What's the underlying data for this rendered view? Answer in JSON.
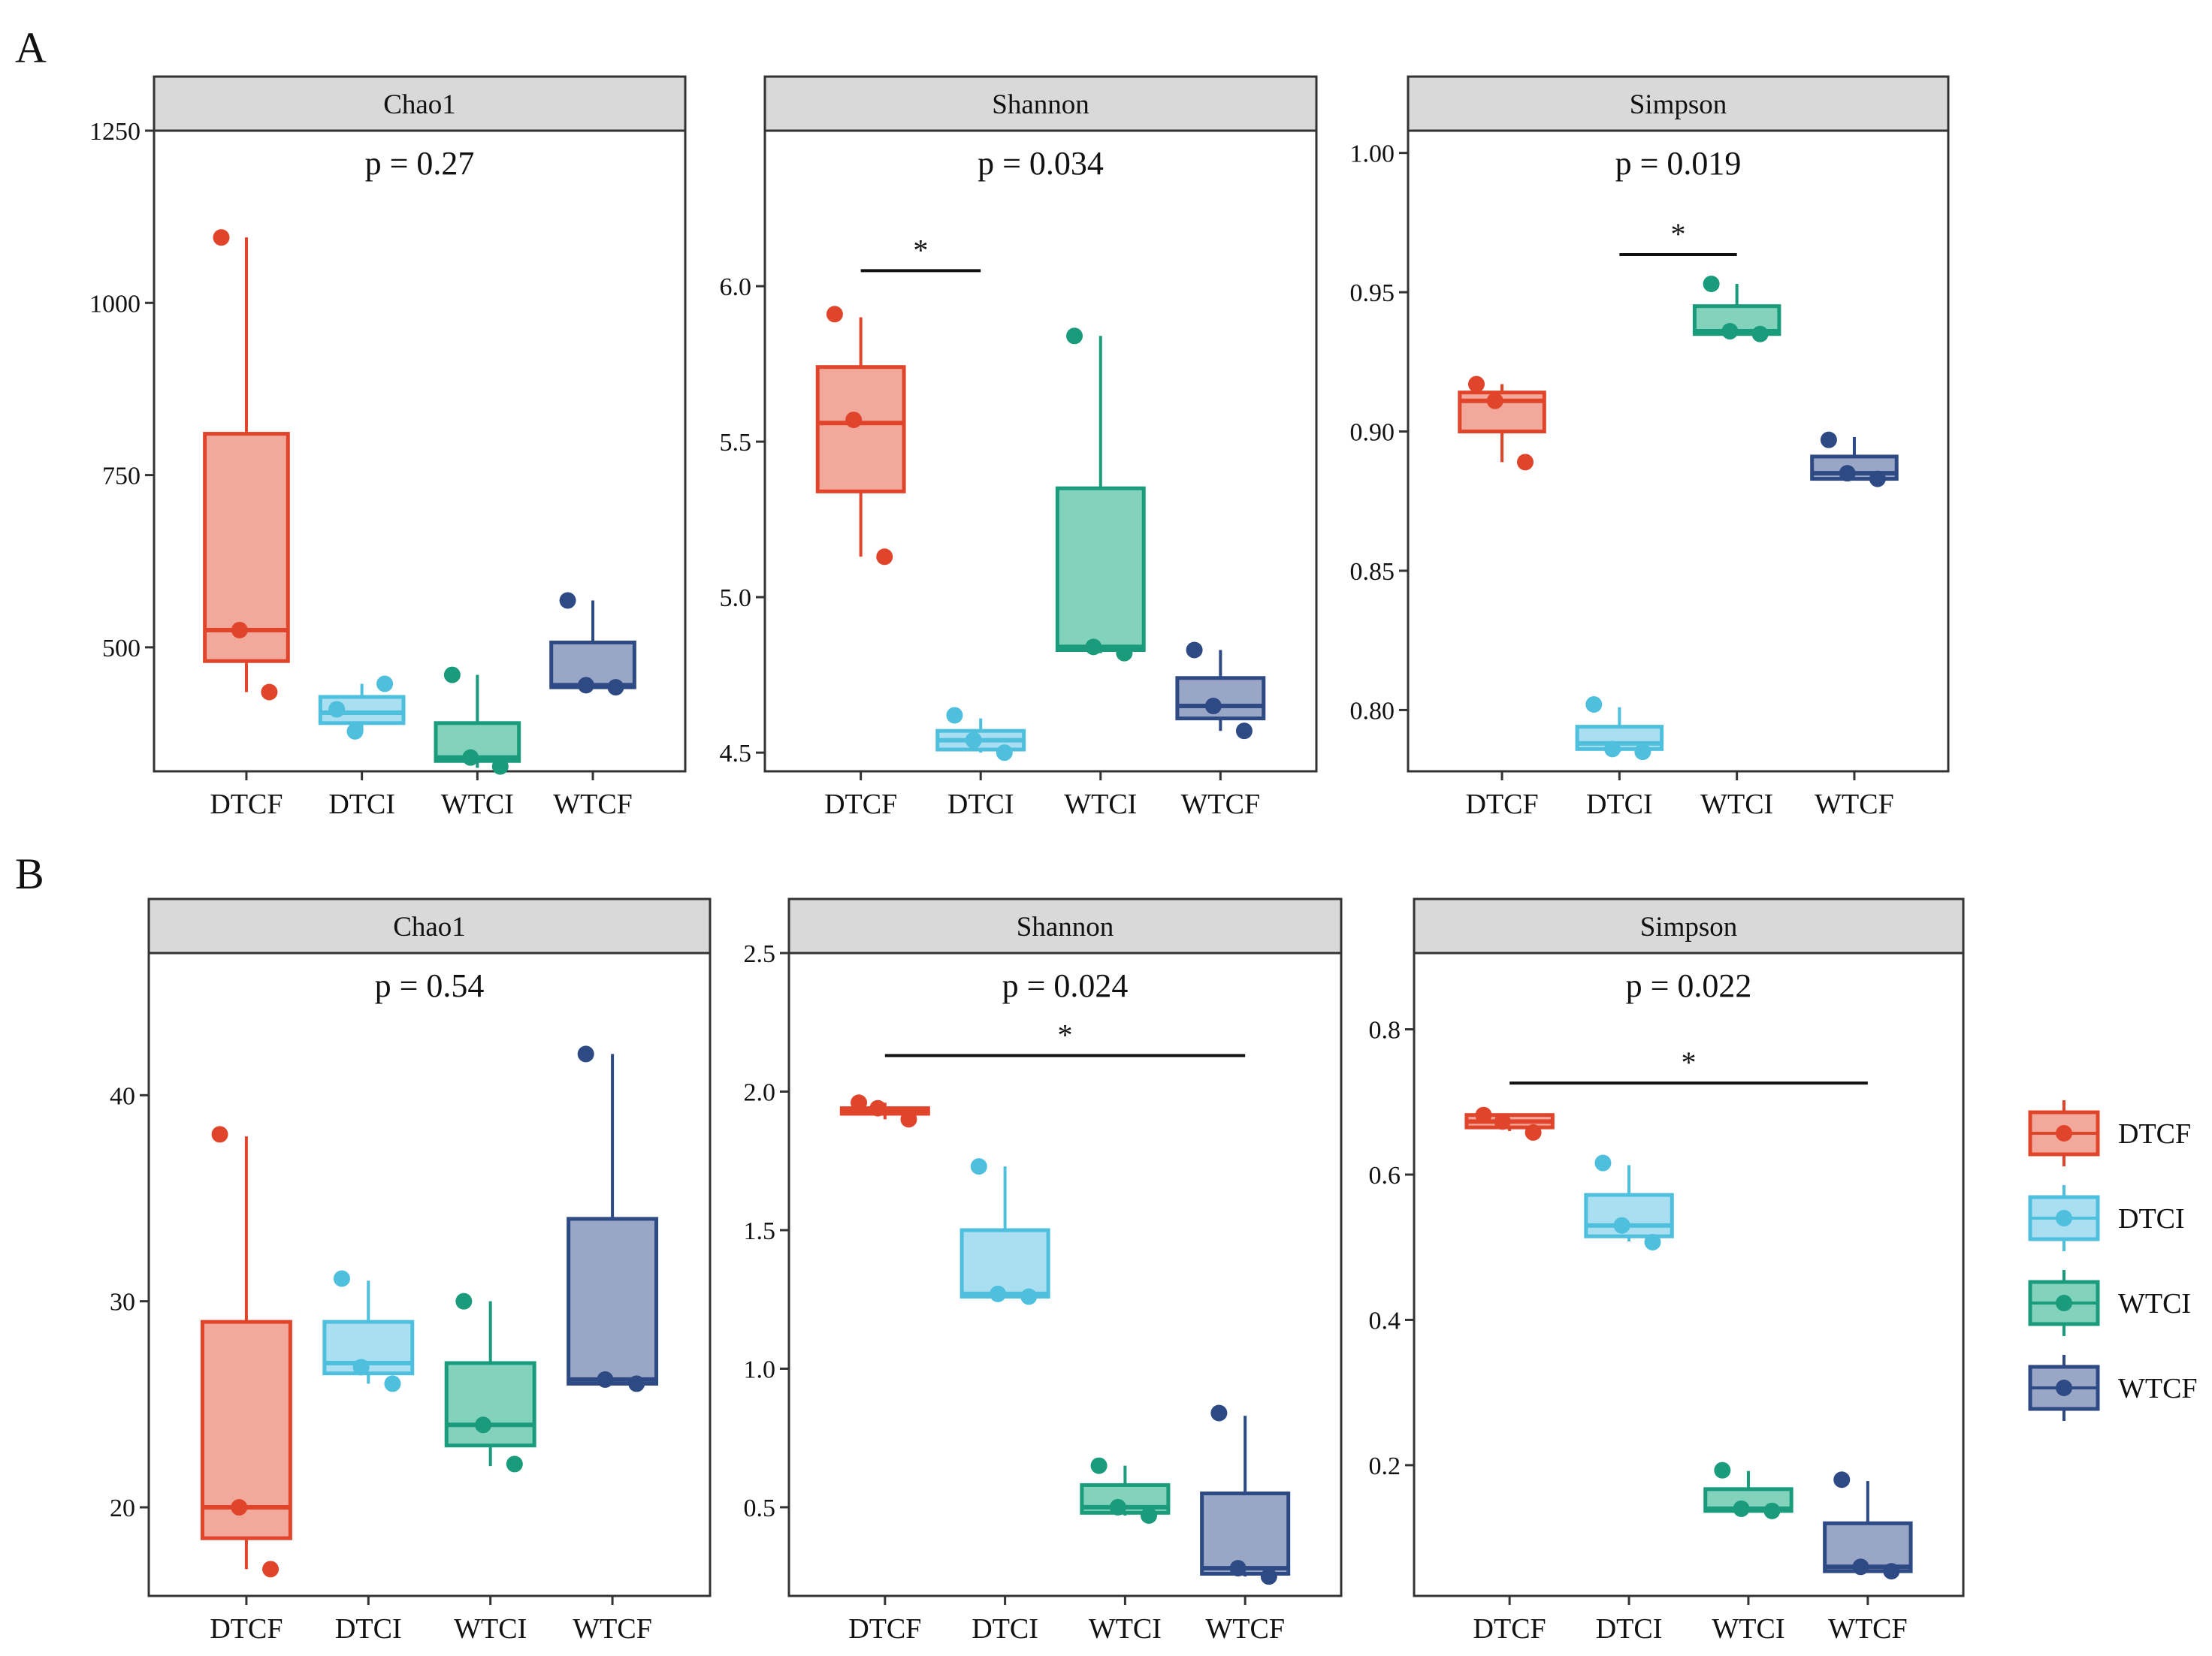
{
  "colors": {
    "DTCF": {
      "line": "#e0452b",
      "fill": "#f2a99c",
      "point": "#e0452b"
    },
    "DTCI": {
      "line": "#4fbfde",
      "fill": "#a9dff0",
      "point": "#4fbfde"
    },
    "WTCI": {
      "line": "#1a9b7b",
      "fill": "#82d2bc",
      "point": "#1a9b7b"
    },
    "WTCF": {
      "line": "#2e4a84",
      "fill": "#9aa6c6",
      "point": "#2e4a84"
    },
    "strip": "#d9d9d9"
  },
  "legend": {
    "entries": [
      "DTCF",
      "DTCI",
      "WTCI",
      "WTCF"
    ]
  },
  "rows": [
    {
      "label": "A"
    },
    {
      "label": "B"
    }
  ],
  "chart_data": [
    {
      "type": "box",
      "row": "A",
      "title": "Chao1",
      "p_label": "p = 0.27",
      "categories": [
        "DTCF",
        "DTCI",
        "WTCI",
        "WTCF"
      ],
      "ylim": [
        320,
        1250
      ],
      "yticks": [
        500,
        750,
        1000,
        1250
      ],
      "boxes": [
        {
          "group": "DTCF",
          "q1": 480,
          "median": 525,
          "q3": 810,
          "lo": 435,
          "hi": 1095
        },
        {
          "group": "DTCI",
          "q1": 390,
          "median": 405,
          "q3": 428,
          "lo": 378,
          "hi": 447
        },
        {
          "group": "WTCI",
          "q1": 335,
          "median": 340,
          "q3": 390,
          "lo": 325,
          "hi": 460
        },
        {
          "group": "WTCF",
          "q1": 442,
          "median": 445,
          "q3": 507,
          "lo": 440,
          "hi": 568
        }
      ],
      "points": [
        {
          "group": "DTCF",
          "values": [
            1095,
            525,
            435
          ]
        },
        {
          "group": "DTCI",
          "values": [
            410,
            378,
            447
          ]
        },
        {
          "group": "WTCI",
          "values": [
            460,
            340,
            327
          ]
        },
        {
          "group": "WTCF",
          "values": [
            568,
            445,
            442
          ]
        }
      ],
      "sig": []
    },
    {
      "type": "box",
      "row": "A",
      "title": "Shannon",
      "p_label": "p = 0.034",
      "categories": [
        "DTCF",
        "DTCI",
        "WTCI",
        "WTCF"
      ],
      "ylim": [
        4.44,
        6.5
      ],
      "yticks": [
        4.5,
        5.0,
        5.5,
        6.0
      ],
      "boxes": [
        {
          "group": "DTCF",
          "q1": 5.34,
          "median": 5.56,
          "q3": 5.74,
          "lo": 5.13,
          "hi": 5.9
        },
        {
          "group": "DTCI",
          "q1": 4.51,
          "median": 4.54,
          "q3": 4.57,
          "lo": 4.5,
          "hi": 4.61
        },
        {
          "group": "WTCI",
          "q1": 4.83,
          "median": 4.84,
          "q3": 5.35,
          "lo": 4.82,
          "hi": 5.84
        },
        {
          "group": "WTCF",
          "q1": 4.61,
          "median": 4.65,
          "q3": 4.74,
          "lo": 4.57,
          "hi": 4.83
        }
      ],
      "points": [
        {
          "group": "DTCF",
          "values": [
            5.91,
            5.57,
            5.13
          ]
        },
        {
          "group": "DTCI",
          "values": [
            4.62,
            4.54,
            4.5
          ]
        },
        {
          "group": "WTCI",
          "values": [
            5.84,
            4.84,
            4.82
          ]
        },
        {
          "group": "WTCF",
          "values": [
            4.83,
            4.65,
            4.57
          ]
        }
      ],
      "sig": [
        {
          "from": 0,
          "to": 1,
          "y": 6.05,
          "label": "*"
        }
      ]
    },
    {
      "type": "box",
      "row": "A",
      "title": "Simpson",
      "p_label": "p = 0.019",
      "categories": [
        "DTCF",
        "DTCI",
        "WTCI",
        "WTCF"
      ],
      "ylim": [
        0.778,
        1.008
      ],
      "yticks": [
        0.8,
        0.85,
        0.9,
        0.95,
        1.0
      ],
      "boxes": [
        {
          "group": "DTCF",
          "q1": 0.9,
          "median": 0.911,
          "q3": 0.914,
          "lo": 0.889,
          "hi": 0.917
        },
        {
          "group": "DTCI",
          "q1": 0.786,
          "median": 0.788,
          "q3": 0.794,
          "lo": 0.785,
          "hi": 0.801
        },
        {
          "group": "WTCI",
          "q1": 0.935,
          "median": 0.936,
          "q3": 0.945,
          "lo": 0.935,
          "hi": 0.953
        },
        {
          "group": "WTCF",
          "q1": 0.883,
          "median": 0.885,
          "q3": 0.891,
          "lo": 0.883,
          "hi": 0.898
        }
      ],
      "points": [
        {
          "group": "DTCF",
          "values": [
            0.917,
            0.911,
            0.889
          ]
        },
        {
          "group": "DTCI",
          "values": [
            0.802,
            0.786,
            0.785
          ]
        },
        {
          "group": "WTCI",
          "values": [
            0.953,
            0.936,
            0.935
          ]
        },
        {
          "group": "WTCF",
          "values": [
            0.897,
            0.885,
            0.883
          ]
        }
      ],
      "sig": [
        {
          "from": 1,
          "to": 2,
          "y": 0.9635,
          "label": "*"
        }
      ]
    },
    {
      "type": "box",
      "row": "B",
      "title": "Chao1",
      "p_label": "p = 0.54",
      "categories": [
        "DTCF",
        "DTCI",
        "WTCI",
        "WTCF"
      ],
      "ylim": [
        15.7,
        46.9
      ],
      "yticks": [
        20,
        30,
        40
      ],
      "boxes": [
        {
          "group": "DTCF",
          "q1": 18.5,
          "median": 20.0,
          "q3": 29.0,
          "lo": 17.0,
          "hi": 38.0
        },
        {
          "group": "DTCI",
          "q1": 26.5,
          "median": 27.0,
          "q3": 29.0,
          "lo": 26.0,
          "hi": 31.0
        },
        {
          "group": "WTCI",
          "q1": 23.0,
          "median": 24.0,
          "q3": 27.0,
          "lo": 22.0,
          "hi": 30.0
        },
        {
          "group": "WTCF",
          "q1": 26.0,
          "median": 26.2,
          "q3": 34.0,
          "lo": 26.0,
          "hi": 42.0
        }
      ],
      "points": [
        {
          "group": "DTCF",
          "values": [
            38.1,
            20.0,
            17.0
          ]
        },
        {
          "group": "DTCI",
          "values": [
            31.1,
            26.8,
            26.0
          ]
        },
        {
          "group": "WTCI",
          "values": [
            30.0,
            24.0,
            22.1
          ]
        },
        {
          "group": "WTCF",
          "values": [
            42.0,
            26.2,
            26.0
          ]
        }
      ],
      "sig": []
    },
    {
      "type": "box",
      "row": "B",
      "title": "Shannon",
      "p_label": "p = 0.024",
      "categories": [
        "DTCF",
        "DTCI",
        "WTCI",
        "WTCF"
      ],
      "ylim": [
        0.18,
        2.5
      ],
      "yticks": [
        0.5,
        1.0,
        1.5,
        2.0,
        2.5
      ],
      "boxes": [
        {
          "group": "DTCF",
          "q1": 1.92,
          "median": 1.93,
          "q3": 1.94,
          "lo": 1.9,
          "hi": 1.96
        },
        {
          "group": "DTCI",
          "q1": 1.26,
          "median": 1.27,
          "q3": 1.5,
          "lo": 1.26,
          "hi": 1.73
        },
        {
          "group": "WTCI",
          "q1": 0.48,
          "median": 0.5,
          "q3": 0.58,
          "lo": 0.47,
          "hi": 0.65
        },
        {
          "group": "WTCF",
          "q1": 0.26,
          "median": 0.28,
          "q3": 0.55,
          "lo": 0.25,
          "hi": 0.83
        }
      ],
      "points": [
        {
          "group": "DTCF",
          "values": [
            1.96,
            1.94,
            1.9
          ]
        },
        {
          "group": "DTCI",
          "values": [
            1.73,
            1.27,
            1.26
          ]
        },
        {
          "group": "WTCI",
          "values": [
            0.65,
            0.5,
            0.47
          ]
        },
        {
          "group": "WTCF",
          "values": [
            0.84,
            0.28,
            0.25
          ]
        }
      ],
      "sig": [
        {
          "from": 0,
          "to": 3,
          "y": 2.13,
          "label": "*"
        }
      ]
    },
    {
      "type": "box",
      "row": "B",
      "title": "Simpson",
      "p_label": "p = 0.022",
      "categories": [
        "DTCF",
        "DTCI",
        "WTCI",
        "WTCF"
      ],
      "ylim": [
        0.02,
        0.905
      ],
      "yticks": [
        0.2,
        0.4,
        0.6,
        0.8
      ],
      "boxes": [
        {
          "group": "DTCF",
          "q1": 0.665,
          "median": 0.673,
          "q3": 0.682,
          "lo": 0.66,
          "hi": 0.682
        },
        {
          "group": "DTCI",
          "q1": 0.515,
          "median": 0.53,
          "q3": 0.572,
          "lo": 0.508,
          "hi": 0.613
        },
        {
          "group": "WTCI",
          "q1": 0.137,
          "median": 0.14,
          "q3": 0.167,
          "lo": 0.137,
          "hi": 0.192
        },
        {
          "group": "WTCF",
          "q1": 0.054,
          "median": 0.06,
          "q3": 0.12,
          "lo": 0.054,
          "hi": 0.178
        }
      ],
      "points": [
        {
          "group": "DTCF",
          "values": [
            0.682,
            0.673,
            0.658
          ]
        },
        {
          "group": "DTCI",
          "values": [
            0.616,
            0.53,
            0.507
          ]
        },
        {
          "group": "WTCI",
          "values": [
            0.193,
            0.14,
            0.137
          ]
        },
        {
          "group": "WTCF",
          "values": [
            0.18,
            0.06,
            0.054
          ]
        }
      ],
      "sig": [
        {
          "from": 0,
          "to": 3,
          "y": 0.726,
          "label": "*"
        }
      ]
    }
  ]
}
